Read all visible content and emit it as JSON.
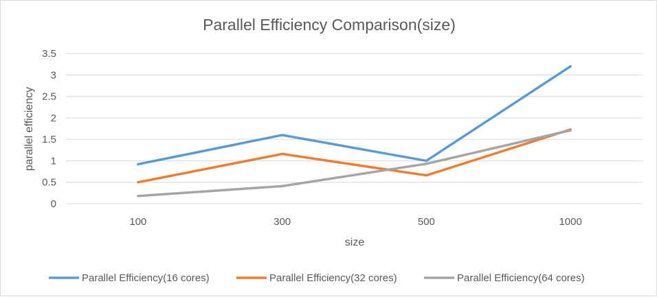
{
  "chart_data": {
    "type": "line",
    "title": "Parallel Efficiency Comparison(size)",
    "xlabel": "size",
    "ylabel": "parallel efficiency",
    "categories": [
      "100",
      "300",
      "500",
      "1000"
    ],
    "ylim": [
      0,
      3.5
    ],
    "yticks": [
      "0",
      "0.5",
      "1",
      "1.5",
      "2",
      "2.5",
      "3",
      "3.5"
    ],
    "grid": true,
    "legend_position": "bottom",
    "series": [
      {
        "name": "Parallel Efficiency(16 cores)",
        "color": "#5b9bd5",
        "values": [
          0.92,
          1.6,
          1.0,
          3.2
        ]
      },
      {
        "name": "Parallel Efficiency(32 cores)",
        "color": "#ed7d31",
        "values": [
          0.5,
          1.16,
          0.66,
          1.73
        ]
      },
      {
        "name": "Parallel Efficiency(64 cores)",
        "color": "#a5a5a5",
        "values": [
          0.18,
          0.41,
          0.93,
          1.71
        ]
      }
    ]
  }
}
